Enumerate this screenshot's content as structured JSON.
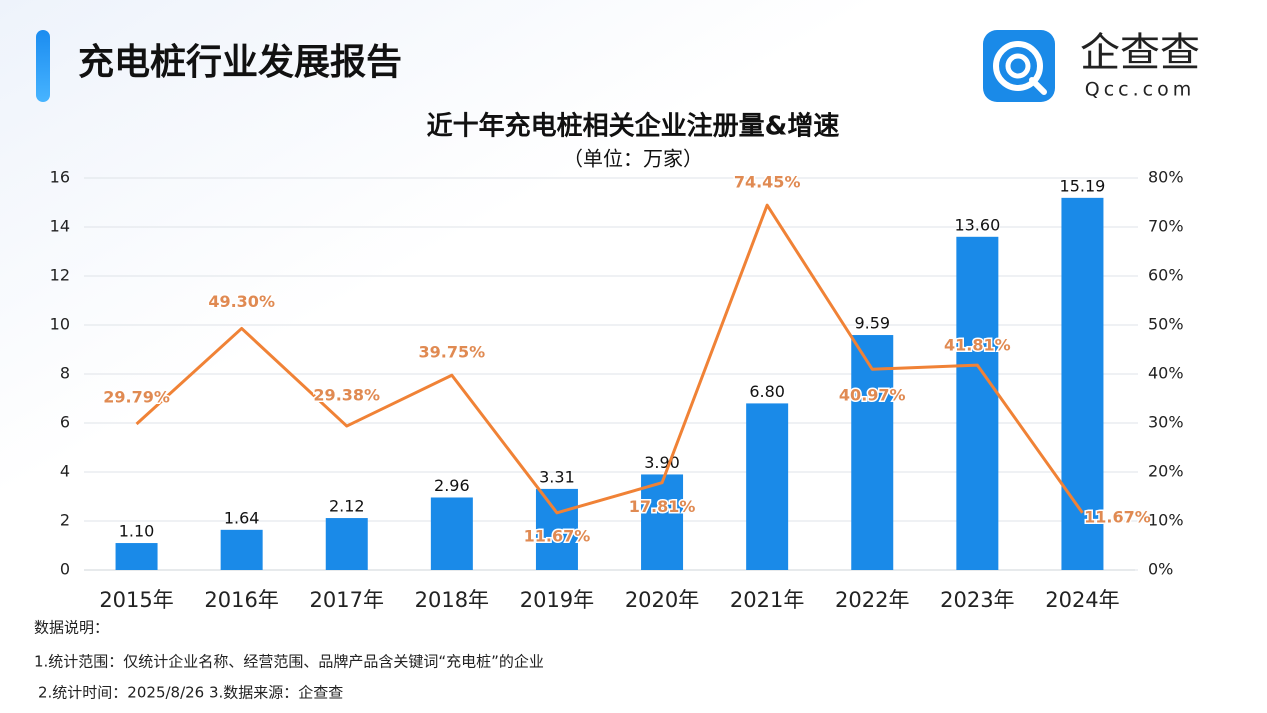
{
  "header": {
    "title": "充电桩行业发展报告"
  },
  "logo": {
    "name": "企查查",
    "domain": "Qcc.com"
  },
  "chart_data": {
    "type": "bar",
    "title": "近十年充电桩相关企业注册量&增速",
    "subtitle": "（单位：万家）",
    "categories": [
      "2015年",
      "2016年",
      "2017年",
      "2018年",
      "2019年",
      "2020年",
      "2021年",
      "2022年",
      "2023年",
      "2024年"
    ],
    "series": [
      {
        "type": "bar",
        "color": "#1a8ae8",
        "values": [
          1.1,
          1.64,
          2.12,
          2.96,
          3.31,
          3.9,
          6.8,
          9.59,
          13.6,
          15.19
        ],
        "value_labels": [
          "1.10",
          "1.64",
          "2.12",
          "2.96",
          "3.31",
          "3.90",
          "6.80",
          "9.59",
          "13.60",
          "15.19"
        ]
      },
      {
        "type": "line",
        "axis": "y2",
        "color": "#f08236",
        "values": [
          29.79,
          49.3,
          29.38,
          39.75,
          11.67,
          17.81,
          74.45,
          40.97,
          41.81,
          11.67
        ],
        "value_labels": [
          "29.79%",
          "49.30%",
          "29.38%",
          "39.75%",
          "11.67%",
          "17.81%",
          "74.45%",
          "40.97%",
          "41.81%",
          "11.67%"
        ]
      }
    ],
    "ylim": [
      0,
      16
    ],
    "yticks": [
      0,
      2,
      4,
      6,
      8,
      10,
      12,
      14,
      16
    ],
    "y2lim": [
      0,
      80
    ],
    "y2ticks": [
      {
        "value": 0,
        "label": "0%"
      },
      {
        "value": 10,
        "label": "10%"
      },
      {
        "value": 20,
        "label": "20%"
      },
      {
        "value": 30,
        "label": "30%"
      },
      {
        "value": 40,
        "label": "40%"
      },
      {
        "value": 50,
        "label": "50%"
      },
      {
        "value": 60,
        "label": "60%"
      },
      {
        "value": 70,
        "label": "70%"
      },
      {
        "value": 80,
        "label": "80%"
      }
    ],
    "grid": true
  },
  "notes": {
    "heading": "数据说明：",
    "lines": [
      "1.统计范围：仅统计企业名称、经营范围、品牌产品含关键词“充电桩”的企业",
      "2.统计时间：2025/8/26 3.数据来源：企查查"
    ]
  }
}
